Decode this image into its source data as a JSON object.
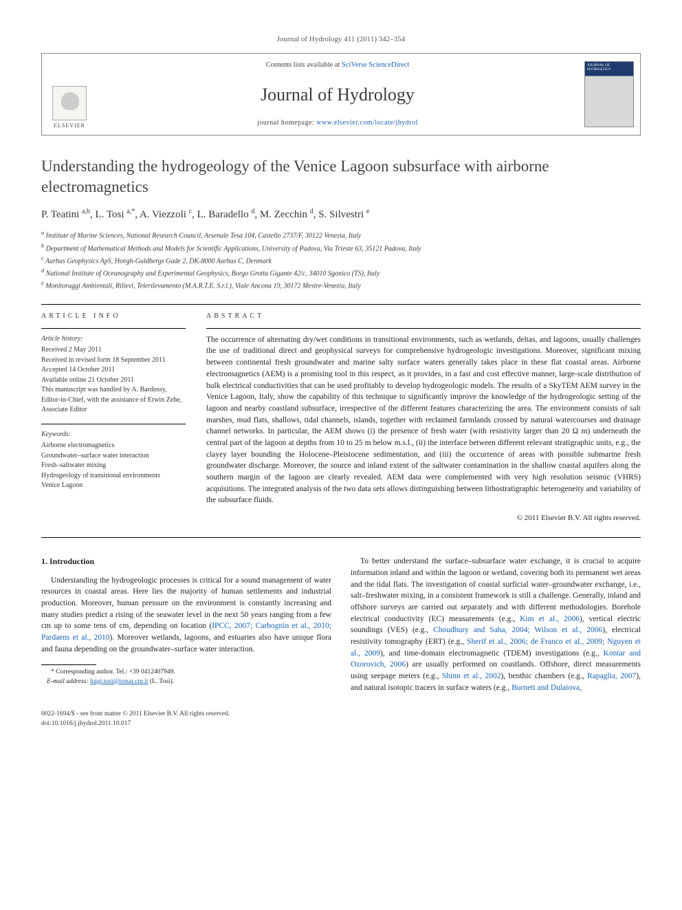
{
  "citation": "Journal of Hydrology 411 (2011) 342–354",
  "masthead": {
    "contents_prefix": "Contents lists available at ",
    "contents_link": "SciVerse ScienceDirect",
    "journal_name": "Journal of Hydrology",
    "homepage_prefix": "journal homepage: ",
    "homepage_url": "www.elsevier.com/locate/jhydrol",
    "publisher": "ELSEVIER",
    "cover_label": "JOURNAL OF HYDROLOGY"
  },
  "title": "Understanding the hydrogeology of the Venice Lagoon subsurface with airborne electromagnetics",
  "authors_html": "P. Teatini <sup>a,b</sup>, L. Tosi <sup>a,*</sup>, A. Viezzoli <sup>c</sup>, L. Baradello <sup>d</sup>, M. Zecchin <sup>d</sup>, S. Silvestri <sup>e</sup>",
  "affiliations": [
    "a Institute of Marine Sciences, National Research Council, Arsenale Tesa 104, Castello 2737/F, 30122 Venezia, Italy",
    "b Department of Mathematical Methods and Models for Scientific Applications, University of Padova, Via Trieste 63, 35121 Padova, Italy",
    "c Aarhus Geophysics ApS, Hoegh-Guldbergs Gade 2, DK-8000 Aarhus C, Denmark",
    "d National Institute of Oceanography and Experimental Geophysics, Borgo Grotta Gigante 42/c, 34010 Sgonico (TS), Italy",
    "e Monitoraggi Ambientali, Rilievi, Telerilevamento (M.A.R.T.E. S.r.l.), Viale Ancona 19, 30172 Mestre-Venezia, Italy"
  ],
  "article_info": {
    "heading": "ARTICLE INFO",
    "history_label": "Article history:",
    "history": [
      "Received 2 May 2011",
      "Received in revised form 18 September 2011",
      "Accepted 14 October 2011",
      "Available online 21 October 2011",
      "This manuscript was handled by A. Bardossy, Editor-in-Chief, with the assistance of Erwin Zehe, Associate Editor"
    ],
    "keywords_label": "Keywords:",
    "keywords": [
      "Airborne electromagnetics",
      "Groundwater–surface water interaction",
      "Fresh–saltwater mixing",
      "Hydrogeology of transitional environments",
      "Venice Lagoon"
    ]
  },
  "abstract": {
    "heading": "ABSTRACT",
    "text": "The occurrence of alternating dry/wet conditions in transitional environments, such as wetlands, deltas, and lagoons, usually challenges the use of traditional direct and geophysical surveys for comprehensive hydrogeologic investigations. Moreover, significant mixing between continental fresh groundwater and marine salty surface waters generally takes place in these flat coastal areas. Airborne electromagnetics (AEM) is a promising tool in this respect, as it provides, in a fast and cost effective manner, large-scale distribution of bulk electrical conductivities that can be used profitably to develop hydrogeologic models. The results of a SkyTEM AEM survey in the Venice Lagoon, Italy, show the capability of this technique to significantly improve the knowledge of the hydrogeologic setting of the lagoon and nearby coastland subsurface, irrespective of the different features characterizing the area. The environment consists of salt marshes, mud flats, shallows, tidal channels, islands, together with reclaimed farmlands crossed by natural watercourses and drainage channel networks. In particular, the AEM shows (i) the presence of fresh water (with resistivity larger than 20 Ω m) underneath the central part of the lagoon at depths from 10 to 25 m below m.s.l., (ii) the interface between different relevant stratigraphic units, e.g., the clayey layer bounding the Holocene–Pleistocene sedimentation, and (iii) the occurrence of areas with possible submarine fresh groundwater discharge. Moreover, the source and inland extent of the saltwater contamination in the shallow coastal aquifers along the southern margin of the lagoon are clearly revealed. AEM data were complemented with very high resolution seismic (VHRS) acquisitions. The integrated analysis of the two data sets allows distinguishing between lithostratigraphic heterogeneity and variability of the subsurface fluids.",
    "copyright": "© 2011 Elsevier B.V. All rights reserved."
  },
  "body": {
    "section_heading": "1. Introduction",
    "para1_pre": "Understanding the hydrogeologic processes is critical for a sound management of water resources in coastal areas. Here lies the majority of human settlements and industrial production. Moreover, human pressure on the environment is constantly increasing and many studies predict a rising of the seawater level in the next 50 years ranging from a few cm up to some tens of cm, depending on location (",
    "para1_ref": "IPCC, 2007; Carbognin et al., 2010; Pardaens et al., 2010",
    "para1_post": "). Moreover wetlands, lagoons, and estuaries also have unique flora and fauna depending on the groundwater–surface water interaction.",
    "para2_parts": {
      "t0": "To better understand the surface–subsurface water exchange, it is crucial to acquire information inland and within the lagoon or wetland, covering both its permanent wet areas and the tidal flats. The investigation of coastal surficial water–groundwater exchange, i.e., salt–freshwater mixing, in a consistent framework is still a challenge. Generally, inland and offshore surveys are carried out separately and with different methodologies. Borehole electrical conductivity (EC) measurements (e.g., ",
      "r1": "Kim et al., 2006",
      "t1": "), vertical electric soundings (VES) (e.g., ",
      "r2": "Choudhury and Saha, 2004; Wilson et al., 2006",
      "t2": "), electrical resistivity tomography (ERT) (e.g., ",
      "r3": "Sherif et al., 2006; de Franco et al., 2009; Nguyen et al., 2009",
      "t3": "), and time-domain electromagnetic (TDEM) investigations (e.g., ",
      "r4": "Kontar and Ozorovich, 2006",
      "t4": ") are usually performed on coastlands. Offshore, direct measurements using seepage meters (e.g., ",
      "r5": "Shinn et al., 2002",
      "t5": "), benthic chambers (e.g., ",
      "r6": "Rapaglia, 2007",
      "t6": "), and natural isotopic tracers in surface waters (e.g., ",
      "r7": "Burnett and Dulaiova,",
      "t7": ""
    }
  },
  "footnote": {
    "corr": "* Corresponding author. Tel.: +39 0412407949.",
    "email_label": "E-mail address:",
    "email": "luigi.tosi@ismar.cnr.it",
    "email_who": "(L. Tosi)."
  },
  "footer": {
    "line1": "0022-1694/$ - see front matter © 2011 Elsevier B.V. All rights reserved.",
    "line2": "doi:10.1016/j.jhydrol.2011.10.017"
  },
  "colors": {
    "link": "#1560b3",
    "text": "#222222",
    "rule": "#000000",
    "cover_top": "#1e3a6e"
  }
}
